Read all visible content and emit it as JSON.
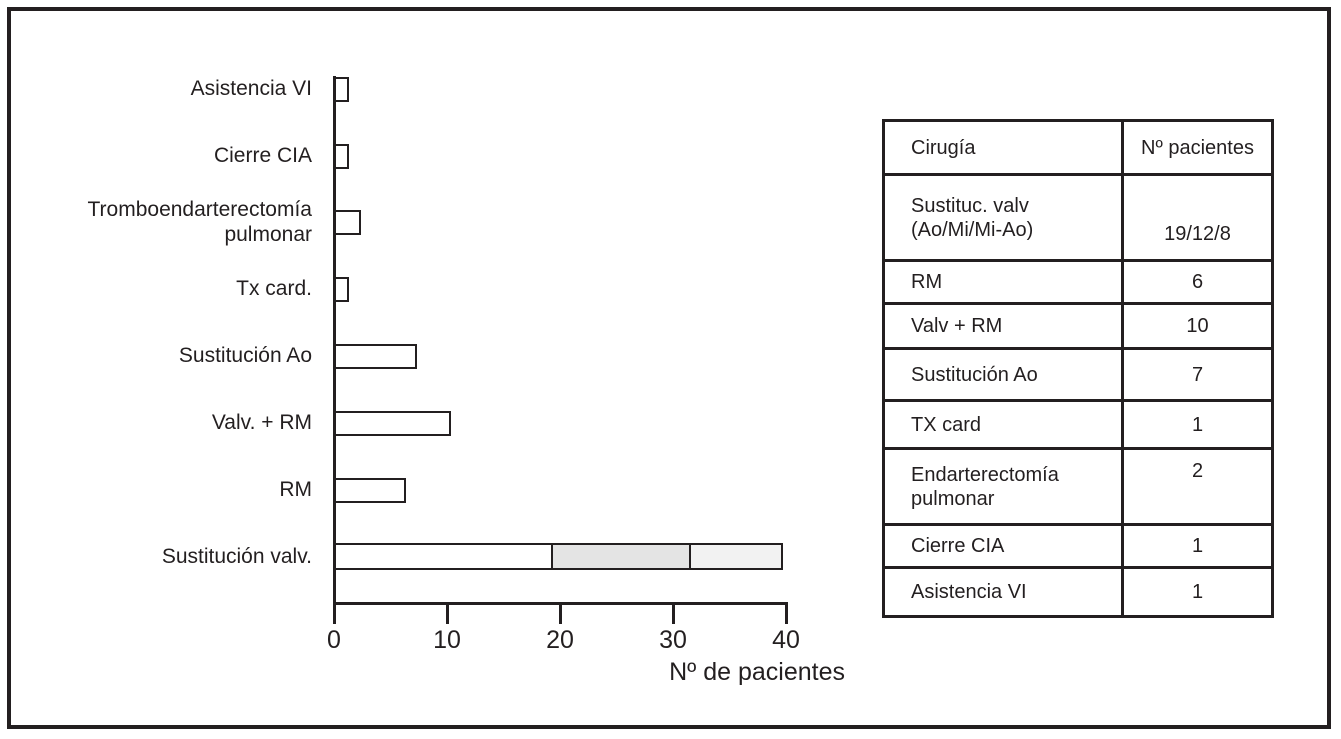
{
  "colors": {
    "ink": "#231f20",
    "bar_fill": "#ffffff",
    "segment_mid_gray": "#e4e4e4",
    "segment_light_gray": "#f2f2f2"
  },
  "chart_data": {
    "type": "bar",
    "orientation": "horizontal",
    "title": "",
    "xlabel": "Nº de pacientes",
    "ylabel": "",
    "xlim": [
      0,
      40
    ],
    "xticks": [
      "0",
      "10",
      "20",
      "30",
      "40"
    ],
    "grid": false,
    "bars": [
      {
        "label": "Asistencia VI",
        "total": 1,
        "segments": [
          {
            "value": 1,
            "fill": "#ffffff"
          }
        ]
      },
      {
        "label": "Cierre CIA",
        "total": 1,
        "segments": [
          {
            "value": 1,
            "fill": "#ffffff"
          }
        ]
      },
      {
        "label": "Tromboendarterectomía\npulmonar",
        "total": 2,
        "segments": [
          {
            "value": 2,
            "fill": "#ffffff"
          }
        ]
      },
      {
        "label": "Tx card.",
        "total": 1,
        "segments": [
          {
            "value": 1,
            "fill": "#ffffff"
          }
        ]
      },
      {
        "label": "Sustitución Ao",
        "total": 7,
        "segments": [
          {
            "value": 7,
            "fill": "#ffffff"
          }
        ]
      },
      {
        "label": "Valv. + RM",
        "total": 10,
        "segments": [
          {
            "value": 10,
            "fill": "#ffffff"
          }
        ]
      },
      {
        "label": "RM",
        "total": 6,
        "segments": [
          {
            "value": 6,
            "fill": "#ffffff"
          }
        ]
      },
      {
        "label": "Sustitución valv.",
        "total": 39,
        "segments": [
          {
            "value": 19,
            "fill": "#ffffff"
          },
          {
            "value": 12,
            "fill": "#e4e4e4"
          },
          {
            "value": 8,
            "fill": "#f2f2f2"
          }
        ]
      }
    ]
  },
  "table": {
    "headers": [
      "Cirugía",
      "Nº pacientes"
    ],
    "rows": [
      {
        "label": "Sustituc. valv\n(Ao/Mi/Mi-Ao)",
        "value": "19/12/8"
      },
      {
        "label": "RM",
        "value": "6"
      },
      {
        "label": "Valv + RM",
        "value": "10"
      },
      {
        "label": "Sustitución Ao",
        "value": "7"
      },
      {
        "label": "TX card",
        "value": "1"
      },
      {
        "label": "Endarterectomía\npulmonar",
        "value": "2"
      },
      {
        "label": "Cierre CIA",
        "value": "1"
      },
      {
        "label": "Asistencia VI",
        "value": "1"
      }
    ]
  }
}
